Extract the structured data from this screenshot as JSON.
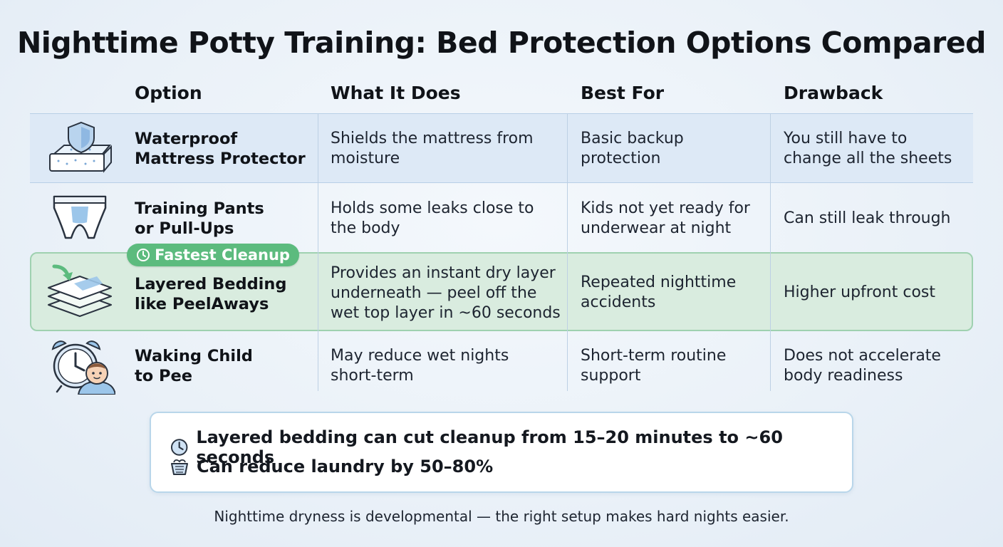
{
  "title": "Nighttime Potty Training: Bed Protection Options Compared",
  "columns": {
    "option": "Option",
    "what": "What It Does",
    "best": "Best For",
    "drawback": "Drawback"
  },
  "rows": [
    {
      "name_line1": "Waterproof",
      "name_line2": "Mattress Protector",
      "what": "Shields the mattress from moisture",
      "best": "Basic backup protection",
      "drawback": "You still have to change all the sheets",
      "icon": "mattress-shield-icon"
    },
    {
      "name_line1": "Training Pants",
      "name_line2": "or Pull-Ups",
      "what": "Holds some leaks close to the body",
      "best": "Kids not yet ready for underwear at night",
      "drawback": "Can still leak through",
      "icon": "training-pants-icon"
    },
    {
      "name_line1": "Layered Bedding",
      "name_line2": "like PeelAways",
      "what": "Provides an instant dry layer underneath — peel off the wet top layer in ~60 seconds",
      "best": "Repeated nighttime accidents",
      "drawback": "Higher upfront cost",
      "icon": "layered-bedding-icon"
    },
    {
      "name_line1": "Waking Child",
      "name_line2": "to Pee",
      "what": "May reduce wet nights short-term",
      "best": "Short-term routine support",
      "drawback": "Does not accelerate body readiness",
      "icon": "alarm-clock-child-icon"
    }
  ],
  "badge": {
    "label": "Fastest Cleanup",
    "icon": "clock-icon"
  },
  "callout": {
    "line1_text": "Layered bedding can cut cleanup from 15–20 minutes to ~60 seconds",
    "line2_text": "Can reduce laundry by 50–80%",
    "line1_icon": "clock-icon",
    "line2_icon": "laundry-basket-icon"
  },
  "footer": "Nighttime dryness is developmental — the right setup makes hard nights easier.",
  "colors": {
    "accent_green": "#5cbb7e",
    "highlight_bg": "#d9ecdf",
    "blue_band": "#dde9f6"
  }
}
